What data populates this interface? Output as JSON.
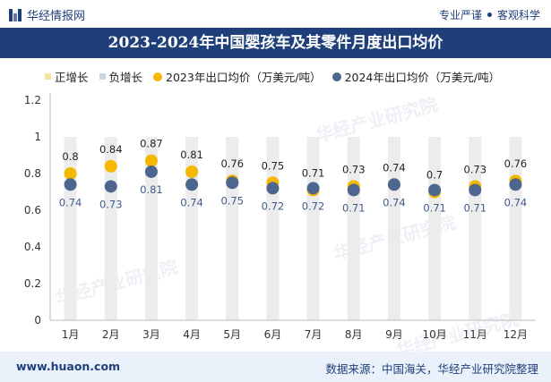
{
  "header": {
    "brand": "华经情报网",
    "tag1": "专业严谨",
    "tag2": "客观科学"
  },
  "title": "2023-2024年中国婴孩车及其零件月度出口均价",
  "legend": {
    "pos": "正增长",
    "neg": "负增长",
    "s2023": "2023年出口均价（万美元/吨）",
    "s2024": "2024年出口均价（万美元/吨）"
  },
  "footer": {
    "website": "www.huaon.com",
    "source": "数据来源：中国海关，华经产业研究院整理"
  },
  "watermark": "华经产业研究院",
  "colors": {
    "header_bg": "#1f3f7a",
    "pos": "#f5e3a3",
    "neg": "#c9d6e6",
    "s2023": "#f5b800",
    "s2024": "#4d6690",
    "bar_bg": "#ececec"
  },
  "chart_data": {
    "type": "scatter",
    "categories": [
      "1月",
      "2月",
      "3月",
      "4月",
      "5月",
      "6月",
      "7月",
      "8月",
      "9月",
      "10月",
      "11月",
      "12月"
    ],
    "series": [
      {
        "name": "2023年出口均价（万美元/吨）",
        "values": [
          0.8,
          0.84,
          0.87,
          0.81,
          0.76,
          0.75,
          0.71,
          0.73,
          0.74,
          0.7,
          0.73,
          0.76
        ]
      },
      {
        "name": "2024年出口均价（万美元/吨）",
        "values": [
          0.74,
          0.73,
          0.81,
          0.74,
          0.75,
          0.72,
          0.72,
          0.71,
          0.74,
          0.71,
          0.71,
          0.74
        ]
      }
    ],
    "yticks": [
      "0",
      "0.2",
      "0.4",
      "0.6",
      "0.8",
      "1",
      "1.2"
    ],
    "ylim": [
      0,
      1.2
    ],
    "grid": false,
    "legend_position": "top"
  }
}
